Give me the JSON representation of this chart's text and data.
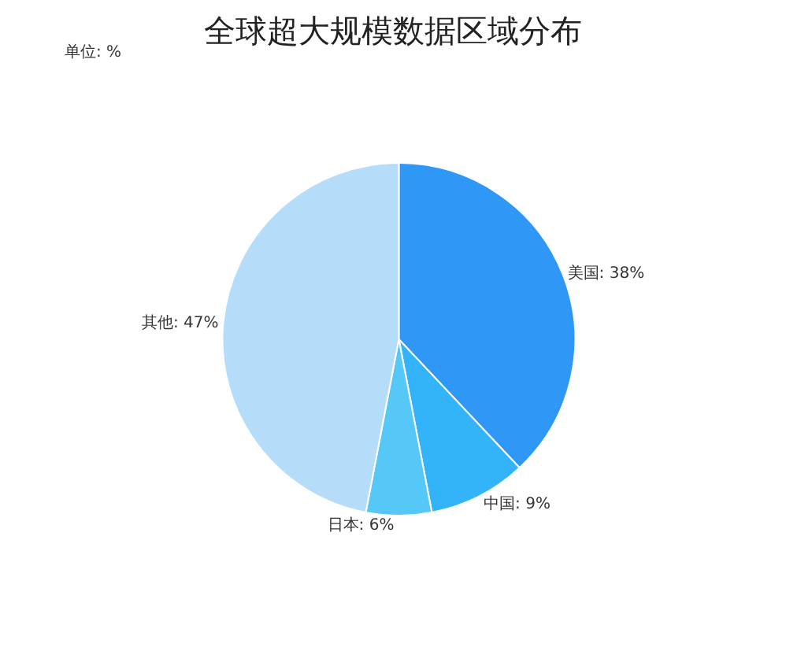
{
  "chart_data": {
    "type": "pie",
    "title": "全球超大规模数据区域分布",
    "subtitle": "单位: %",
    "categories": [
      "美国",
      "中国",
      "日本",
      "其他"
    ],
    "values": [
      38,
      9,
      6,
      47
    ],
    "value_labels": [
      "38%",
      "9%",
      "6%",
      "47%"
    ],
    "colors": [
      "#2f97f5",
      "#33b3f9",
      "#56c8f7",
      "#b5dcf8"
    ],
    "legend": false
  }
}
